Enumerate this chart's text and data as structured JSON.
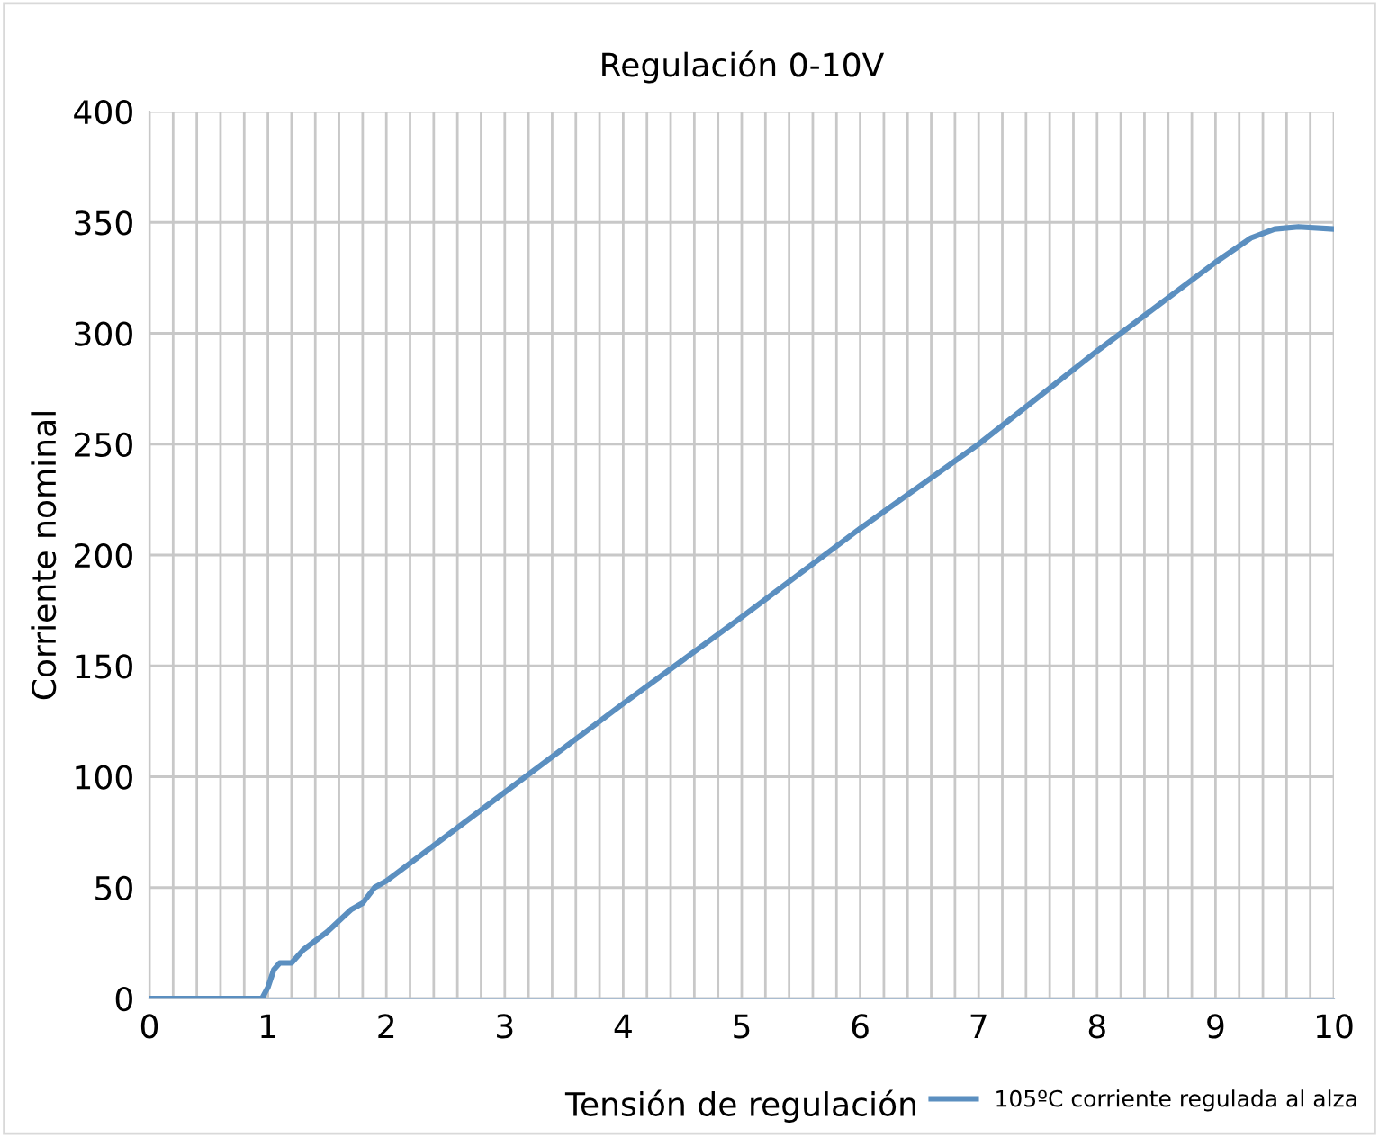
{
  "chart_data": {
    "type": "line",
    "title": "Regulación 0-10V",
    "xlabel": "Tensión de regulación",
    "ylabel": "Corriente nominal",
    "x": [
      0,
      0.95,
      1.0,
      1.05,
      1.1,
      1.2,
      1.3,
      1.5,
      1.7,
      1.8,
      1.9,
      2,
      3,
      4,
      5,
      6,
      7,
      8,
      9,
      9.3,
      9.5,
      9.7,
      10
    ],
    "series": [
      {
        "name": "105ºC corriente regulada al alza",
        "color": "#5b8fc0",
        "values": [
          0,
          0,
          5,
          13,
          16,
          16,
          22,
          30,
          40,
          43,
          50,
          53,
          93,
          133,
          172,
          212,
          250,
          292,
          332,
          343,
          347,
          348,
          347
        ]
      }
    ],
    "xlim": [
      0,
      10
    ],
    "xticks": [
      0,
      {
        "value": 0.2,
        "label": null
      },
      {
        "value": 0.4,
        "label": null
      },
      {
        "value": 0.6,
        "label": null
      },
      {
        "value": 0.8,
        "label": null
      },
      1,
      {
        "value": 1.2,
        "label": null
      },
      {
        "value": 1.4,
        "label": null
      },
      {
        "value": 1.6,
        "label": null
      },
      {
        "value": 1.8,
        "label": null
      },
      2,
      {
        "value": 2.2,
        "label": null
      },
      {
        "value": 2.4,
        "label": null
      },
      {
        "value": 2.6,
        "label": null
      },
      {
        "value": 2.8,
        "label": null
      },
      3,
      {
        "value": 3.2,
        "label": null
      },
      {
        "value": 3.4,
        "label": null
      },
      {
        "value": 3.6,
        "label": null
      },
      {
        "value": 3.8,
        "label": null
      },
      4,
      {
        "value": 4.2,
        "label": null
      },
      {
        "value": 4.4,
        "label": null
      },
      {
        "value": 4.6,
        "label": null
      },
      {
        "value": 4.8,
        "label": null
      },
      5,
      {
        "value": 5.2,
        "label": null
      },
      {
        "value": 5.4,
        "label": null
      },
      {
        "value": 5.6,
        "label": null
      },
      {
        "value": 5.8,
        "label": null
      },
      6,
      {
        "value": 6.2,
        "label": null
      },
      {
        "value": 6.4,
        "label": null
      },
      {
        "value": 6.6,
        "label": null
      },
      {
        "value": 6.8,
        "label": null
      },
      7,
      {
        "value": 7.2,
        "label": null
      },
      {
        "value": 7.4,
        "label": null
      },
      {
        "value": 7.6,
        "label": null
      },
      {
        "value": 7.8,
        "label": null
      },
      8,
      {
        "value": 8.2,
        "label": null
      },
      {
        "value": 8.4,
        "label": null
      },
      {
        "value": 8.6,
        "label": null
      },
      {
        "value": 8.8,
        "label": null
      },
      9,
      {
        "value": 9.2,
        "label": null
      },
      {
        "value": 9.4,
        "label": null
      },
      {
        "value": 9.6,
        "label": null
      },
      {
        "value": 9.8,
        "label": null
      },
      10
    ],
    "ylim": [
      0,
      400
    ],
    "yticks": [
      0,
      50,
      100,
      150,
      200,
      250,
      300,
      350,
      400
    ],
    "grid": true,
    "legend": "bottom right",
    "marker": "none",
    "line_style": "solid"
  }
}
